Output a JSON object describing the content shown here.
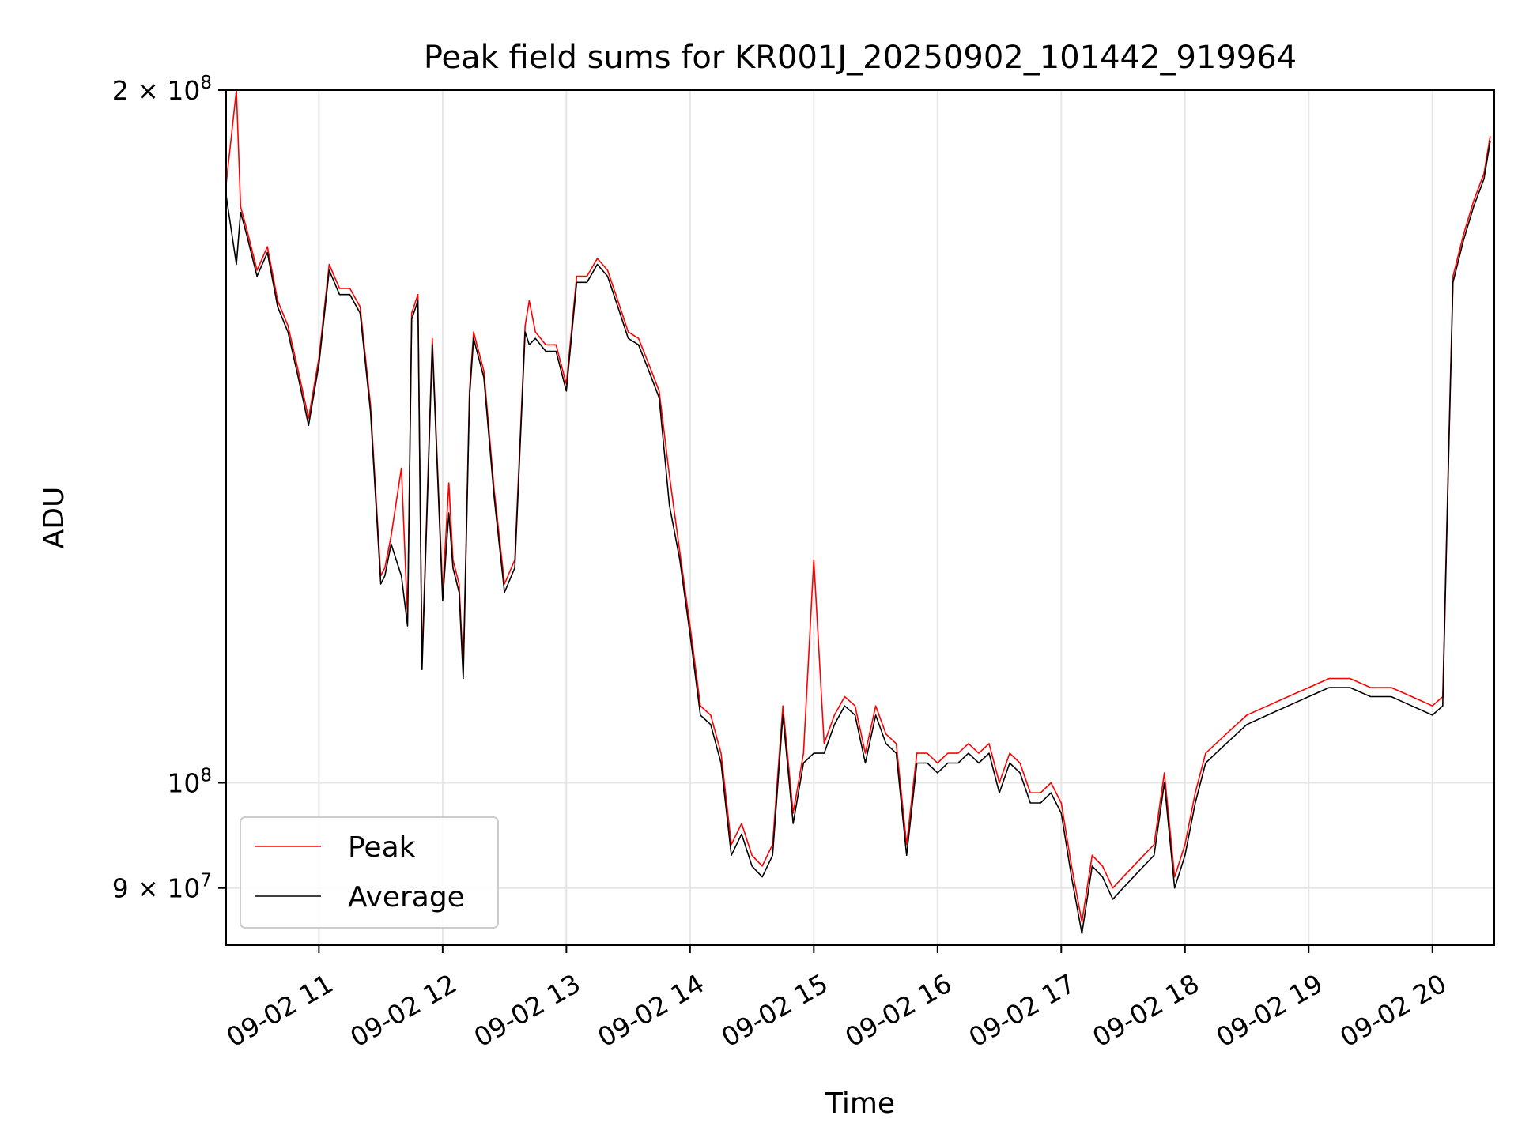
{
  "chart_data": {
    "type": "line",
    "title": "Peak field sums for KR001J_20250902_101442_919964",
    "xlabel": "Time",
    "ylabel": "ADU",
    "yscale": "log",
    "xlim": [
      "2025-09-02 10:15",
      "2025-09-02 20:30"
    ],
    "ylim": [
      85000000,
      200000000
    ],
    "grid": true,
    "legend_position": "lower-left",
    "x_ticks": [
      "09-02 11",
      "09-02 12",
      "09-02 13",
      "09-02 14",
      "09-02 15",
      "09-02 16",
      "09-02 17",
      "09-02 18",
      "09-02 19",
      "09-02 20"
    ],
    "y_ticks": [
      {
        "value": 200000000,
        "label": "2 × 10^8"
      },
      {
        "value": 100000000,
        "label": "10^8"
      },
      {
        "value": 90000000,
        "label": "9 × 10^7"
      }
    ],
    "colors": {
      "Peak": "#ff0000",
      "Average": "#000000"
    },
    "series": [
      {
        "name": "Average",
        "x": [
          "10:15",
          "10:20",
          "10:22",
          "10:25",
          "10:30",
          "10:35",
          "10:40",
          "10:45",
          "10:50",
          "10:55",
          "11:00",
          "11:05",
          "11:10",
          "11:15",
          "11:20",
          "11:25",
          "11:30",
          "11:32",
          "11:35",
          "11:40",
          "11:43",
          "11:45",
          "11:48",
          "11:50",
          "11:55",
          "12:00",
          "12:03",
          "12:05",
          "12:08",
          "12:10",
          "12:13",
          "12:15",
          "12:20",
          "12:25",
          "12:30",
          "12:35",
          "12:40",
          "12:42",
          "12:45",
          "12:50",
          "12:55",
          "13:00",
          "13:05",
          "13:10",
          "13:15",
          "13:20",
          "13:25",
          "13:30",
          "13:35",
          "13:40",
          "13:45",
          "13:50",
          "13:55",
          "14:00",
          "14:05",
          "14:10",
          "14:15",
          "14:20",
          "14:25",
          "14:30",
          "14:35",
          "14:40",
          "14:45",
          "14:50",
          "14:55",
          "15:00",
          "15:05",
          "15:10",
          "15:15",
          "15:20",
          "15:25",
          "15:30",
          "15:35",
          "15:40",
          "15:45",
          "15:50",
          "15:55",
          "16:00",
          "16:05",
          "16:10",
          "16:15",
          "16:20",
          "16:25",
          "16:30",
          "16:35",
          "16:40",
          "16:45",
          "16:50",
          "16:55",
          "17:00",
          "17:05",
          "17:10",
          "17:15",
          "17:20",
          "17:25",
          "17:30",
          "17:35",
          "17:40",
          "17:45",
          "17:50",
          "17:55",
          "18:00",
          "18:05",
          "18:10",
          "18:15",
          "18:20",
          "18:30",
          "18:40",
          "18:50",
          "19:00",
          "19:10",
          "19:20",
          "19:30",
          "19:40",
          "19:50",
          "20:00",
          "20:05",
          "20:08",
          "20:10",
          "20:15",
          "20:20",
          "20:25",
          "20:28"
        ],
        "y": [
          180000000,
          168000000,
          177000000,
          173000000,
          166000000,
          170000000,
          161000000,
          157000000,
          150000000,
          143000000,
          152000000,
          167000000,
          163000000,
          163000000,
          160000000,
          145000000,
          122000000,
          123000000,
          127000000,
          123000000,
          117000000,
          159000000,
          162000000,
          112000000,
          155000000,
          120000000,
          131000000,
          124000000,
          121000000,
          111000000,
          147000000,
          156000000,
          150000000,
          133000000,
          121000000,
          124000000,
          157000000,
          155000000,
          156000000,
          154000000,
          154000000,
          148000000,
          165000000,
          165000000,
          168000000,
          166000000,
          161000000,
          156000000,
          155000000,
          151000000,
          147000000,
          132000000,
          125000000,
          116000000,
          107000000,
          106000000,
          102000000,
          93000000,
          95000000,
          92000000,
          91000000,
          93000000,
          107000000,
          96000000,
          102000000,
          103000000,
          103000000,
          106000000,
          108000000,
          107000000,
          102000000,
          107000000,
          104000000,
          103000000,
          93000000,
          102000000,
          102000000,
          101000000,
          102000000,
          102000000,
          103000000,
          102000000,
          103000000,
          99000000,
          102000000,
          101000000,
          98000000,
          98000000,
          99000000,
          97000000,
          91000000,
          86000000,
          92000000,
          91000000,
          89000000,
          90000000,
          91000000,
          92000000,
          93000000,
          100000000,
          90000000,
          93000000,
          98000000,
          102000000,
          103000000,
          104000000,
          106000000,
          107000000,
          108000000,
          109000000,
          110000000,
          110000000,
          109000000,
          109000000,
          108000000,
          107000000,
          108000000,
          140000000,
          165000000,
          172000000,
          178000000,
          183000000,
          190000000
        ]
      },
      {
        "name": "Peak",
        "x": [
          "10:15",
          "10:20",
          "10:22",
          "10:25",
          "10:30",
          "10:35",
          "10:40",
          "10:45",
          "10:50",
          "10:55",
          "11:00",
          "11:05",
          "11:10",
          "11:15",
          "11:20",
          "11:25",
          "11:30",
          "11:32",
          "11:35",
          "11:40",
          "11:43",
          "11:45",
          "11:48",
          "11:50",
          "11:55",
          "12:00",
          "12:03",
          "12:05",
          "12:08",
          "12:10",
          "12:13",
          "12:15",
          "12:20",
          "12:25",
          "12:30",
          "12:35",
          "12:40",
          "12:42",
          "12:45",
          "12:50",
          "12:55",
          "13:00",
          "13:05",
          "13:10",
          "13:15",
          "13:20",
          "13:25",
          "13:30",
          "13:35",
          "13:40",
          "13:45",
          "13:50",
          "13:55",
          "14:00",
          "14:05",
          "14:10",
          "14:15",
          "14:20",
          "14:25",
          "14:30",
          "14:35",
          "14:40",
          "14:45",
          "14:50",
          "14:55",
          "15:00",
          "15:05",
          "15:10",
          "15:15",
          "15:20",
          "15:25",
          "15:30",
          "15:35",
          "15:40",
          "15:45",
          "15:50",
          "15:55",
          "16:00",
          "16:05",
          "16:10",
          "16:15",
          "16:20",
          "16:25",
          "16:30",
          "16:35",
          "16:40",
          "16:45",
          "16:50",
          "16:55",
          "17:00",
          "17:05",
          "17:10",
          "17:15",
          "17:20",
          "17:25",
          "17:30",
          "17:35",
          "17:40",
          "17:45",
          "17:50",
          "17:55",
          "18:00",
          "18:05",
          "18:10",
          "18:15",
          "18:20",
          "18:30",
          "18:40",
          "18:50",
          "19:00",
          "19:10",
          "19:20",
          "19:30",
          "19:40",
          "19:50",
          "20:00",
          "20:05",
          "20:08",
          "20:10",
          "20:15",
          "20:20",
          "20:25",
          "20:28"
        ],
        "y": [
          182000000,
          200000000,
          178000000,
          174000000,
          167000000,
          171000000,
          162000000,
          158000000,
          151000000,
          144000000,
          153000000,
          168000000,
          164000000,
          164000000,
          161000000,
          146000000,
          123000000,
          124000000,
          128000000,
          137000000,
          118000000,
          160000000,
          163000000,
          113000000,
          156000000,
          121000000,
          135000000,
          125000000,
          122000000,
          112000000,
          148000000,
          157000000,
          151000000,
          134000000,
          122000000,
          125000000,
          158000000,
          162000000,
          157000000,
          155000000,
          155000000,
          149000000,
          166000000,
          166000000,
          169000000,
          167000000,
          162000000,
          157000000,
          156000000,
          152000000,
          148000000,
          136000000,
          126000000,
          117000000,
          108000000,
          107000000,
          103000000,
          94000000,
          96000000,
          93000000,
          92000000,
          94000000,
          108000000,
          97000000,
          103000000,
          125000000,
          104000000,
          107000000,
          109000000,
          108000000,
          103000000,
          108000000,
          105000000,
          104000000,
          94000000,
          103000000,
          103000000,
          102000000,
          103000000,
          103000000,
          104000000,
          103000000,
          104000000,
          100000000,
          103000000,
          102000000,
          99000000,
          99000000,
          100000000,
          98000000,
          92000000,
          87000000,
          93000000,
          92000000,
          90000000,
          91000000,
          92000000,
          93000000,
          94000000,
          101000000,
          91000000,
          94000000,
          99000000,
          103000000,
          104000000,
          105000000,
          107000000,
          108000000,
          109000000,
          110000000,
          111000000,
          111000000,
          110000000,
          110000000,
          109000000,
          108000000,
          109000000,
          141000000,
          166000000,
          173000000,
          179000000,
          184000000,
          191000000
        ]
      }
    ]
  }
}
